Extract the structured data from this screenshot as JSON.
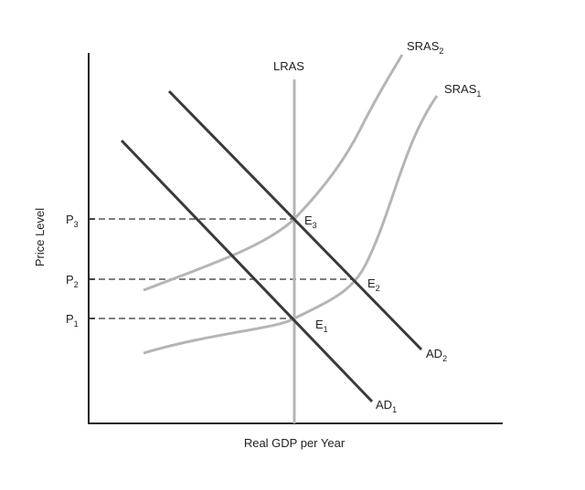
{
  "diagram": {
    "axes": {
      "x_label": "Real GDP per Year",
      "y_label": "Price Level"
    },
    "price_levels": [
      {
        "id": "p3",
        "base": "P",
        "sub": "3"
      },
      {
        "id": "p2",
        "base": "P",
        "sub": "2"
      },
      {
        "id": "p1",
        "base": "P",
        "sub": "1"
      }
    ],
    "curves": {
      "lras": {
        "base": "LRAS",
        "sub": ""
      },
      "sras2": {
        "base": "SRAS",
        "sub": "2"
      },
      "sras1": {
        "base": "SRAS",
        "sub": "1"
      },
      "ad1": {
        "base": "AD",
        "sub": "1"
      },
      "ad2": {
        "base": "AD",
        "sub": "2"
      }
    },
    "equilibria": [
      {
        "id": "e3",
        "base": "E",
        "sub": "3"
      },
      {
        "id": "e2",
        "base": "E",
        "sub": "2"
      },
      {
        "id": "e1",
        "base": "E",
        "sub": "1"
      }
    ],
    "colors": {
      "axis": "#222222",
      "ad_line": "#3a3a3a",
      "supply_curve": "#b5b5b5",
      "guide": "#555555"
    }
  }
}
